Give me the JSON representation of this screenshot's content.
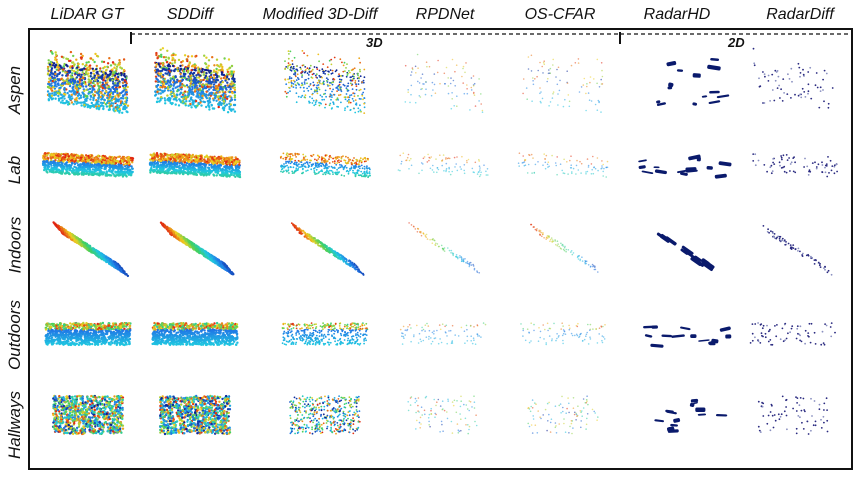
{
  "columns": [
    {
      "label": "LiDAR GT",
      "style": "dense"
    },
    {
      "label": "SDDiff",
      "style": "dense"
    },
    {
      "label": "Modified 3D-Diff",
      "style": "medium"
    },
    {
      "label": "RPDNet",
      "style": "sparse"
    },
    {
      "label": "OS-CFAR",
      "style": "sparse"
    },
    {
      "label": "RadarHD",
      "style": "blobs2d"
    },
    {
      "label": "RadarDiff",
      "style": "scatter2d"
    }
  ],
  "rows": [
    {
      "label": "Aspen",
      "shape": "box"
    },
    {
      "label": "Lab",
      "shape": "flat"
    },
    {
      "label": "Indoors",
      "shape": "diag"
    },
    {
      "label": "Outdoors",
      "shape": "wide"
    },
    {
      "label": "Hallways",
      "shape": "blob"
    }
  ],
  "groups": {
    "three_d": "3D",
    "two_d": "2D"
  },
  "colors": {
    "deep_blue": "#0a1a8c",
    "jet_red": "#e02010",
    "jet_yellow": "#f0d020",
    "jet_green": "#40d060",
    "jet_cyan": "#20c8e0"
  }
}
